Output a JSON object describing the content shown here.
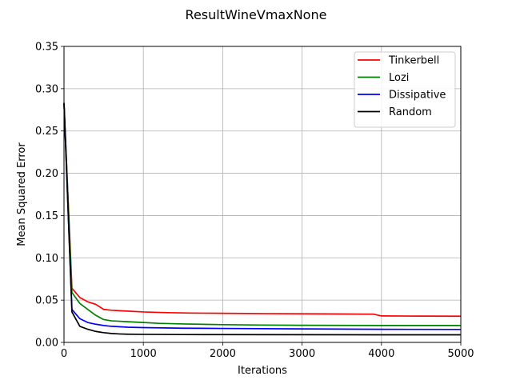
{
  "chart_data": {
    "type": "line",
    "title": "ResultWineVmaxNone",
    "xlabel": "Iterations",
    "ylabel": "Mean Squared Error",
    "xlim": [
      0,
      5000
    ],
    "ylim": [
      0,
      0.35
    ],
    "xticks": [
      0,
      1000,
      2000,
      3000,
      4000,
      5000
    ],
    "xtick_labels": [
      "0",
      "1000",
      "2000",
      "3000",
      "4000",
      "5000"
    ],
    "yticks": [
      0,
      0.05,
      0.1,
      0.15,
      0.2,
      0.25,
      0.3,
      0.35
    ],
    "ytick_labels": [
      "0.00",
      "0.05",
      "0.10",
      "0.15",
      "0.20",
      "0.25",
      "0.30",
      "0.35"
    ],
    "grid": true,
    "legend_position": "top-right",
    "series": [
      {
        "name": "Tinkerbell",
        "color": "#ff0000",
        "x": [
          0,
          100,
          200,
          300,
          400,
          500,
          600,
          700,
          800,
          1000,
          1300,
          1600,
          2000,
          2600,
          3000,
          3500,
          3900,
          4000,
          4500,
          5000
        ],
        "y": [
          0.283,
          0.064,
          0.053,
          0.048,
          0.045,
          0.039,
          0.038,
          0.0375,
          0.037,
          0.036,
          0.0352,
          0.0347,
          0.0344,
          0.034,
          0.0338,
          0.0336,
          0.0334,
          0.0313,
          0.0311,
          0.031
        ]
      },
      {
        "name": "Lozi",
        "color": "#008000",
        "x": [
          0,
          100,
          200,
          300,
          400,
          500,
          600,
          700,
          800,
          1000,
          1200,
          1500,
          2000,
          2500,
          3000,
          4000,
          5000
        ],
        "y": [
          0.283,
          0.059,
          0.046,
          0.039,
          0.032,
          0.027,
          0.0255,
          0.025,
          0.0245,
          0.0235,
          0.0225,
          0.0218,
          0.021,
          0.0205,
          0.0202,
          0.02,
          0.02
        ]
      },
      {
        "name": "Dissipative",
        "color": "#0000ff",
        "x": [
          0,
          100,
          200,
          300,
          400,
          500,
          600,
          800,
          1000,
          1500,
          2000,
          3000,
          4000,
          5000
        ],
        "y": [
          0.283,
          0.039,
          0.028,
          0.0235,
          0.0215,
          0.02,
          0.019,
          0.018,
          0.0175,
          0.0168,
          0.0165,
          0.016,
          0.0155,
          0.0153
        ]
      },
      {
        "name": "Random",
        "color": "#000000",
        "x": [
          0,
          100,
          200,
          300,
          400,
          500,
          600,
          700,
          800,
          1000,
          1500,
          2000,
          3000,
          4000,
          5000
        ],
        "y": [
          0.283,
          0.036,
          0.019,
          0.0155,
          0.013,
          0.0115,
          0.0105,
          0.01,
          0.0097,
          0.0095,
          0.0093,
          0.0092,
          0.0091,
          0.009,
          0.009
        ]
      }
    ]
  }
}
